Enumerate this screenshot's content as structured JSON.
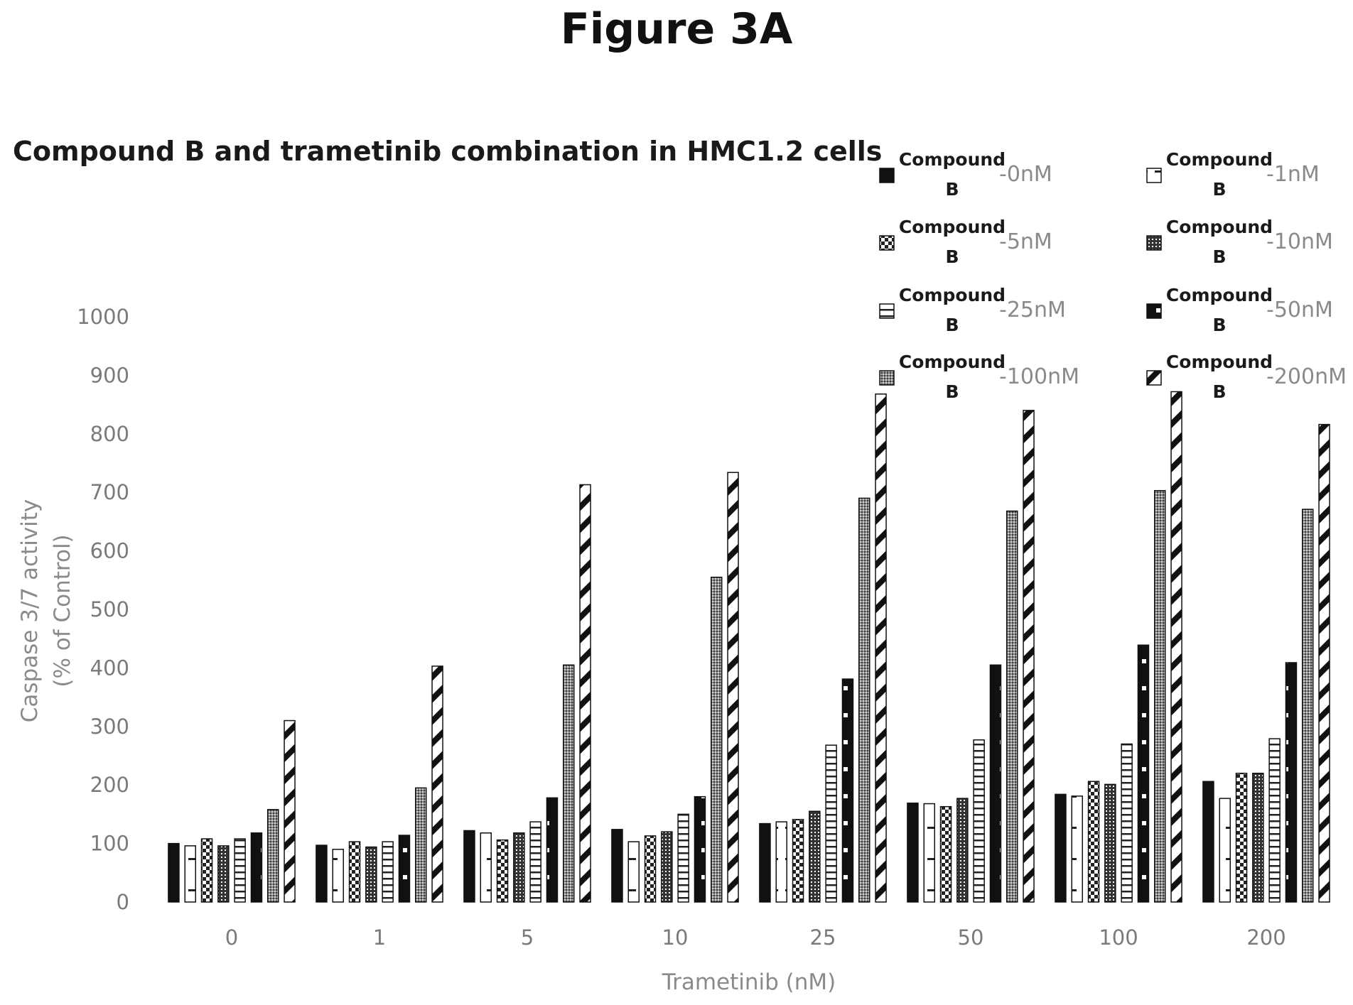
{
  "figure_label": "Figure 3A",
  "chart_data": {
    "type": "bar",
    "title": "Compound B and trametinib combination in HMC1.2 cells",
    "xlabel": "Trametinib (nM)",
    "ylabel_line1": "Caspase 3/7 activity",
    "ylabel_line2": "(% of Control)",
    "ylim": [
      0,
      1000
    ],
    "yticks": [
      0,
      100,
      200,
      300,
      400,
      500,
      600,
      700,
      800,
      900,
      1000
    ],
    "grid": false,
    "legend_position": "top-right",
    "categories": [
      "0",
      "1",
      "5",
      "10",
      "25",
      "50",
      "100",
      "200"
    ],
    "series": [
      {
        "name_line1": "Compound",
        "name_line2": "B",
        "dose": "-0nM",
        "pattern": "solid",
        "values": [
          100,
          97,
          122,
          124,
          134,
          169,
          184,
          206
        ]
      },
      {
        "name_line1": "Compound",
        "name_line2": "B",
        "dose": "-1nM",
        "pattern": "dash",
        "values": [
          96,
          90,
          118,
          103,
          137,
          168,
          181,
          177
        ]
      },
      {
        "name_line1": "Compound",
        "name_line2": "B",
        "dose": "-5nM",
        "pattern": "check",
        "values": [
          108,
          103,
          106,
          113,
          141,
          163,
          206,
          220
        ]
      },
      {
        "name_line1": "Compound",
        "name_line2": "B",
        "dose": "-10nM",
        "pattern": "grid",
        "values": [
          96,
          94,
          118,
          120,
          155,
          177,
          201,
          220
        ]
      },
      {
        "name_line1": "Compound",
        "name_line2": "B",
        "dose": "-25nM",
        "pattern": "hlines",
        "values": [
          108,
          103,
          137,
          150,
          268,
          277,
          270,
          279
        ]
      },
      {
        "name_line1": "Compound",
        "name_line2": "B",
        "dose": "-50nM",
        "pattern": "dots",
        "values": [
          118,
          114,
          178,
          180,
          381,
          405,
          439,
          409
        ]
      },
      {
        "name_line1": "Compound",
        "name_line2": "B",
        "dose": "-100nM",
        "pattern": "stipple",
        "values": [
          158,
          195,
          405,
          555,
          690,
          668,
          703,
          671
        ]
      },
      {
        "name_line1": "Compound",
        "name_line2": "B",
        "dose": "-200nM",
        "pattern": "diag",
        "values": [
          310,
          403,
          713,
          734,
          868,
          840,
          872,
          816
        ]
      }
    ]
  }
}
